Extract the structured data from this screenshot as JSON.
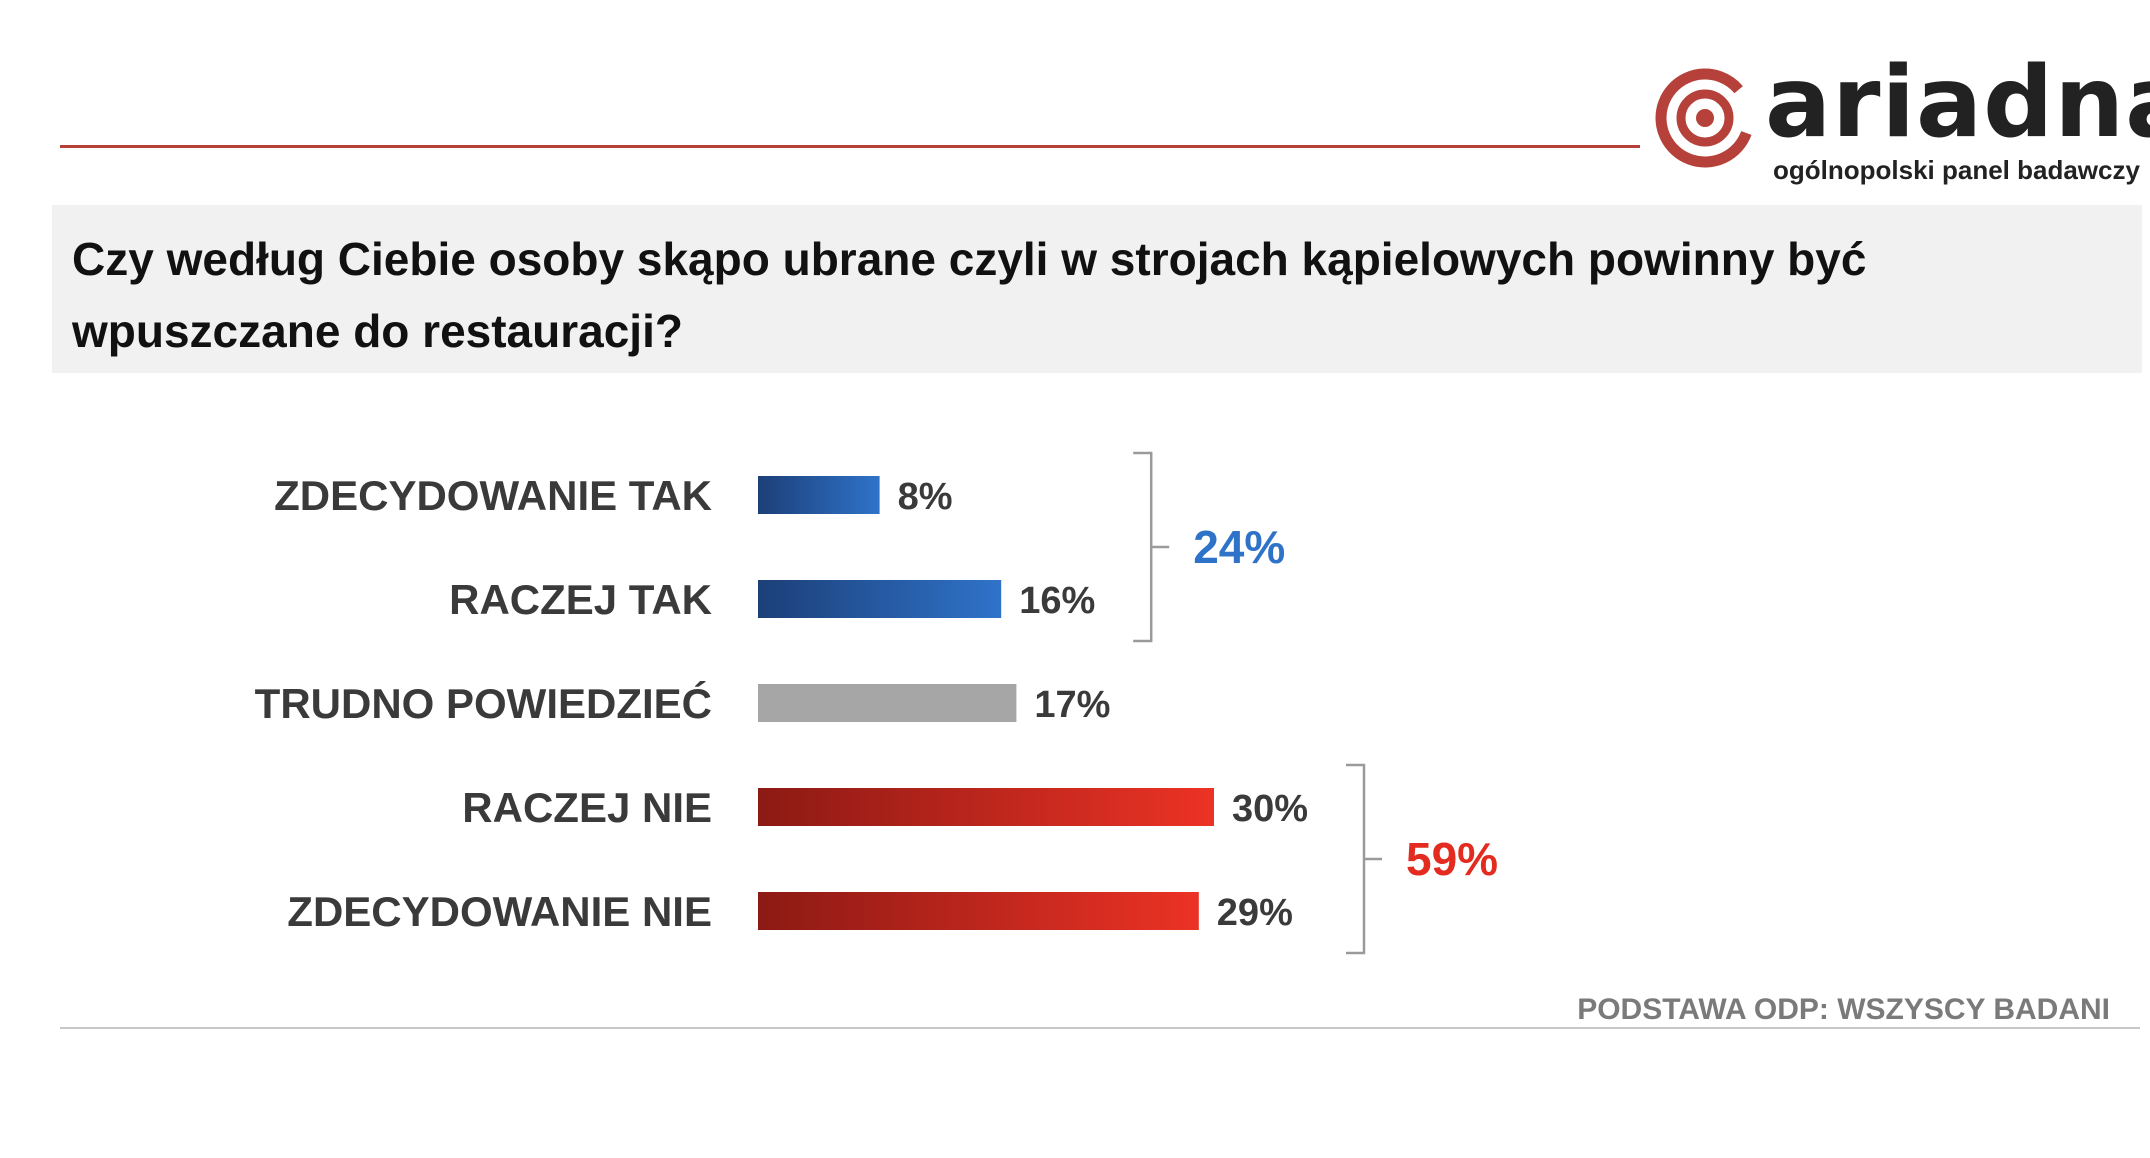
{
  "header": {
    "logo_name": "ariadna",
    "logo_tagline": "ogólnopolski panel badawczy"
  },
  "question": "Czy według Ciebie osoby skąpo ubrane czyli w strojach kąpielowych powinny być wpuszczane do restauracji?",
  "footer": {
    "base_note": "PODSTAWA ODP: WSZYSCY BADANI"
  },
  "colors": {
    "brand": "#b5413a",
    "blue_dark": "#1c3f78",
    "blue_light": "#2f73c9",
    "gray": "#a6a6a6",
    "red_dark": "#8c1a14",
    "red_light": "#ec3225"
  },
  "chart_data": {
    "type": "bar",
    "orientation": "horizontal",
    "categories": [
      "ZDECYDOWANIE TAK",
      "RACZEJ TAK",
      "TRUDNO POWIEDZIEĆ",
      "RACZEJ NIE",
      "ZDECYDOWANIE NIE"
    ],
    "values": [
      8,
      16,
      17,
      30,
      29
    ],
    "value_labels": [
      "8%",
      "16%",
      "17%",
      "30%",
      "29%"
    ],
    "bar_colors": [
      "blue",
      "blue",
      "gray",
      "red",
      "red"
    ],
    "groups": [
      {
        "label": "24%",
        "from": 0,
        "to": 1,
        "color": "blue"
      },
      {
        "label": "59%",
        "from": 3,
        "to": 4,
        "color": "red"
      }
    ]
  }
}
